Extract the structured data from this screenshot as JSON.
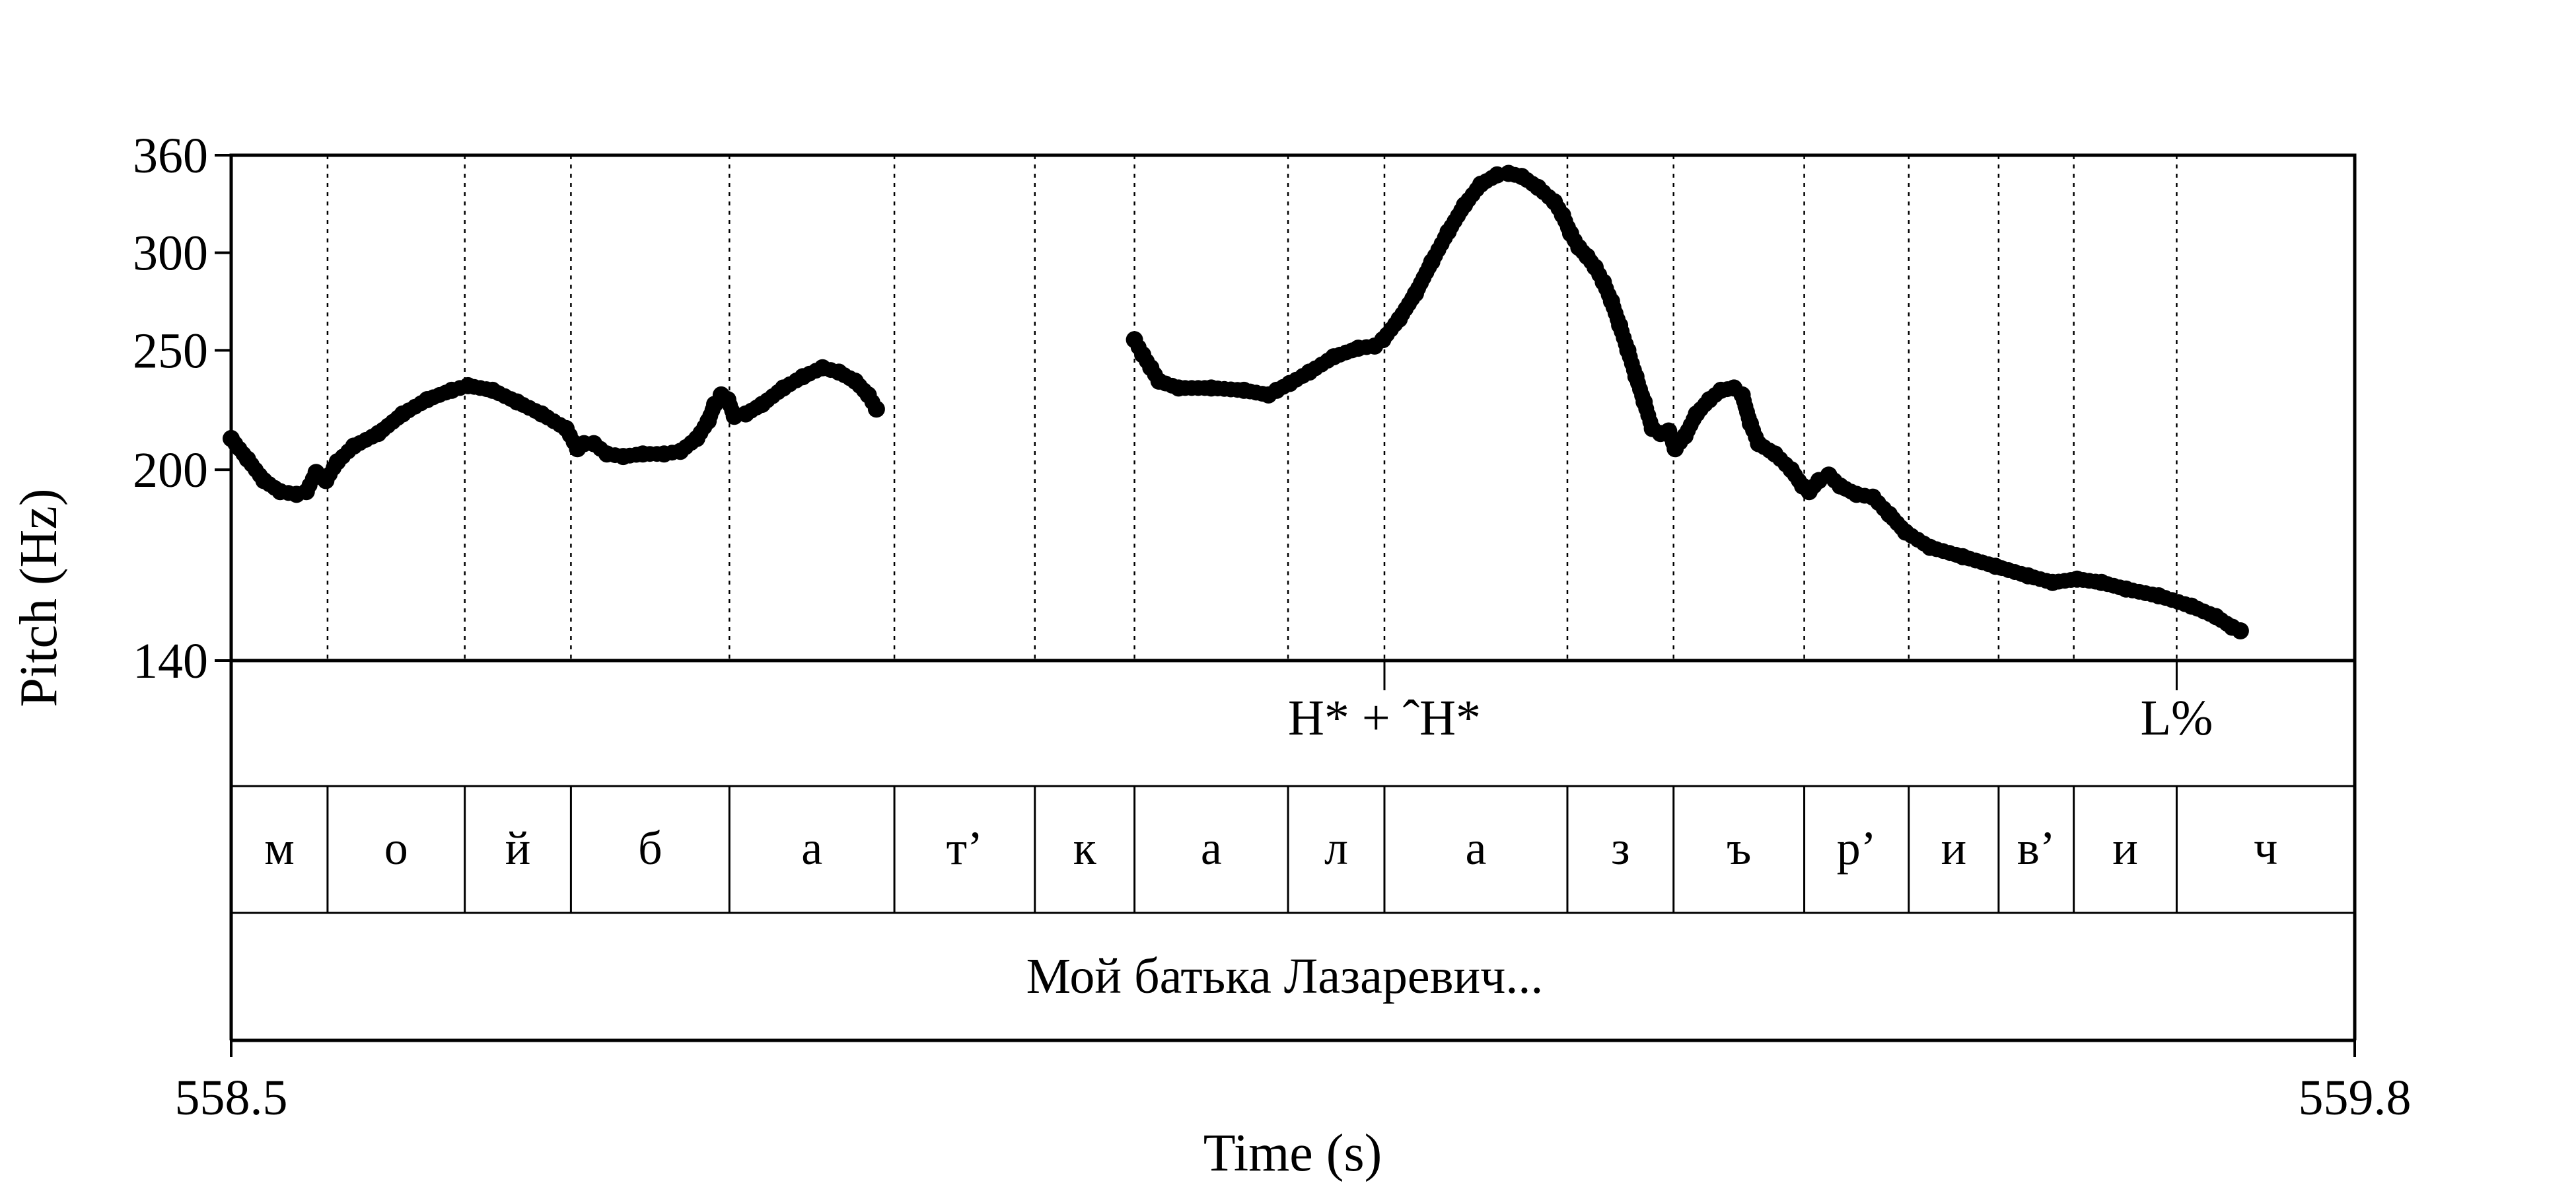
{
  "chart_data": {
    "type": "line",
    "title": "",
    "xlabel": "Time (s)",
    "ylabel": "Pitch (Hz)",
    "xlim": [
      558.5,
      559.8
    ],
    "ylim": [
      140,
      360
    ],
    "x_tick_labels": [
      "558.5",
      "559.8"
    ],
    "y_ticks": [
      140,
      200,
      250,
      300,
      360
    ],
    "y_tick_labels": [
      "140",
      "200",
      "250",
      "300",
      "360"
    ],
    "grid": false,
    "legend": "none",
    "series": [
      {
        "points": [
          [
            558.5,
            212
          ],
          [
            558.51,
            204
          ],
          [
            558.52,
            196
          ],
          [
            558.53,
            192
          ],
          [
            558.54,
            191
          ],
          [
            558.546,
            192
          ],
          [
            558.552,
            199
          ],
          [
            558.558,
            196
          ],
          [
            558.565,
            203
          ],
          [
            558.575,
            209
          ],
          [
            558.59,
            214
          ],
          [
            558.605,
            222
          ],
          [
            558.62,
            228
          ],
          [
            558.635,
            232
          ],
          [
            558.645,
            234
          ],
          [
            558.66,
            232
          ],
          [
            558.675,
            227
          ],
          [
            558.69,
            222
          ],
          [
            558.705,
            216
          ],
          [
            558.7,
            218
          ],
          [
            558.69,
            222
          ],
          [
            558.7,
            218
          ],
          [
            558.71,
            213
          ],
          [
            558.7,
            218
          ],
          [
            558.705,
            216
          ],
          [
            558.71,
            213
          ],
          [
            558.7,
            218
          ]
        ]
      },
      {
        "points": [
          [
            558.5,
            212
          ],
          [
            558.51,
            204
          ],
          [
            558.52,
            196
          ],
          [
            558.53,
            192
          ],
          [
            558.54,
            191
          ],
          [
            558.546,
            192
          ],
          [
            558.552,
            199
          ],
          [
            558.558,
            196
          ],
          [
            558.565,
            203
          ],
          [
            558.575,
            209
          ],
          [
            558.59,
            214
          ],
          [
            558.605,
            222
          ],
          [
            558.62,
            228
          ],
          [
            558.635,
            232
          ],
          [
            558.645,
            234
          ],
          [
            558.66,
            232
          ],
          [
            558.675,
            227
          ],
          [
            558.69,
            222
          ],
          [
            558.705,
            216
          ],
          [
            558.712,
            208
          ],
          [
            558.716,
            210
          ],
          [
            558.722,
            210
          ],
          [
            558.73,
            206
          ],
          [
            558.74,
            205
          ],
          [
            558.752,
            206
          ],
          [
            558.765,
            206
          ],
          [
            558.775,
            207
          ],
          [
            558.785,
            212
          ],
          [
            558.792,
            219
          ],
          [
            558.796,
            226
          ],
          [
            558.8,
            230
          ],
          [
            558.804,
            228
          ],
          [
            558.808,
            221
          ],
          [
            558.815,
            222
          ],
          [
            558.825,
            226
          ],
          [
            558.838,
            233
          ],
          [
            558.85,
            238
          ],
          [
            558.862,
            242
          ],
          [
            558.872,
            240
          ],
          [
            558.882,
            236
          ],
          [
            558.89,
            230
          ],
          [
            558.895,
            224
          ]
        ]
      },
      {
        "points": [
          [
            559.053,
            255
          ],
          [
            559.058,
            248
          ],
          [
            559.063,
            242
          ],
          [
            559.068,
            236
          ],
          [
            559.08,
            233
          ],
          [
            559.1,
            233
          ],
          [
            559.12,
            232
          ],
          [
            559.135,
            230
          ],
          [
            559.14,
            232
          ],
          [
            559.148,
            235
          ],
          [
            559.16,
            240
          ],
          [
            559.175,
            247
          ],
          [
            559.19,
            251
          ],
          [
            559.2,
            252
          ],
          [
            559.205,
            255
          ],
          [
            559.215,
            265
          ],
          [
            559.225,
            278
          ],
          [
            559.235,
            295
          ],
          [
            559.245,
            312
          ],
          [
            559.255,
            328
          ],
          [
            559.265,
            341
          ],
          [
            559.275,
            347
          ],
          [
            559.282,
            348
          ],
          [
            559.29,
            346
          ],
          [
            559.3,
            339
          ],
          [
            559.31,
            330
          ],
          [
            559.315,
            322
          ],
          [
            559.32,
            311
          ],
          [
            559.325,
            303
          ],
          [
            559.33,
            298
          ],
          [
            559.335,
            292
          ],
          [
            559.34,
            284
          ],
          [
            559.345,
            274
          ],
          [
            559.35,
            262
          ],
          [
            559.355,
            250
          ],
          [
            559.36,
            238
          ],
          [
            559.365,
            227
          ],
          [
            559.37,
            216
          ],
          [
            559.375,
            214
          ],
          [
            559.38,
            215
          ],
          [
            559.384,
            208
          ],
          [
            559.39,
            213
          ],
          [
            559.397,
            222
          ],
          [
            559.405,
            228
          ],
          [
            559.412,
            232
          ],
          [
            559.42,
            233
          ],
          [
            559.425,
            230
          ],
          [
            559.43,
            218
          ],
          [
            559.435,
            210
          ],
          [
            559.445,
            206
          ],
          [
            559.455,
            200
          ],
          [
            559.462,
            194
          ],
          [
            559.466,
            192
          ],
          [
            559.472,
            196
          ],
          [
            559.478,
            198
          ],
          [
            559.485,
            194
          ],
          [
            559.495,
            191
          ],
          [
            559.505,
            190
          ],
          [
            559.515,
            184
          ],
          [
            559.525,
            178
          ],
          [
            559.54,
            173
          ],
          [
            559.56,
            170
          ],
          [
            559.58,
            167
          ],
          [
            559.6,
            164
          ],
          [
            559.615,
            162
          ],
          [
            559.63,
            163
          ],
          [
            559.645,
            162
          ],
          [
            559.66,
            160
          ],
          [
            559.68,
            158
          ],
          [
            559.7,
            155
          ],
          [
            559.715,
            152
          ],
          [
            559.725,
            149
          ],
          [
            559.73,
            148
          ]
        ]
      }
    ],
    "boundaries": [
      558.559,
      558.643,
      558.708,
      558.805,
      558.906,
      558.992,
      559.053,
      559.147,
      559.206,
      559.318,
      559.383,
      559.463,
      559.527,
      559.582,
      559.628,
      559.691
    ],
    "tones": [
      {
        "label": "H* + ˆH*",
        "time": 559.206
      },
      {
        "label": "L%",
        "time": 559.691
      }
    ],
    "segments": [
      {
        "label": "м",
        "start": 558.5,
        "end": 558.559
      },
      {
        "label": "о",
        "start": 558.559,
        "end": 558.643
      },
      {
        "label": "й",
        "start": 558.643,
        "end": 558.708
      },
      {
        "label": "б",
        "start": 558.708,
        "end": 558.805
      },
      {
        "label": "а",
        "start": 558.805,
        "end": 558.906
      },
      {
        "label": "т’",
        "start": 558.906,
        "end": 558.992
      },
      {
        "label": "к",
        "start": 558.992,
        "end": 559.053
      },
      {
        "label": "а",
        "start": 559.053,
        "end": 559.147
      },
      {
        "label": "л",
        "start": 559.147,
        "end": 559.206
      },
      {
        "label": "а",
        "start": 559.206,
        "end": 559.318
      },
      {
        "label": "з",
        "start": 559.318,
        "end": 559.383
      },
      {
        "label": "ъ",
        "start": 559.383,
        "end": 559.463
      },
      {
        "label": "р’",
        "start": 559.463,
        "end": 559.527
      },
      {
        "label": "и",
        "start": 559.527,
        "end": 559.582
      },
      {
        "label": "в’",
        "start": 559.582,
        "end": 559.628
      },
      {
        "label": "и",
        "start": 559.628,
        "end": 559.691
      },
      {
        "label": "ч",
        "start": 559.691,
        "end": 559.8
      }
    ],
    "orthographic": "Мой батька Лазаревич..."
  }
}
